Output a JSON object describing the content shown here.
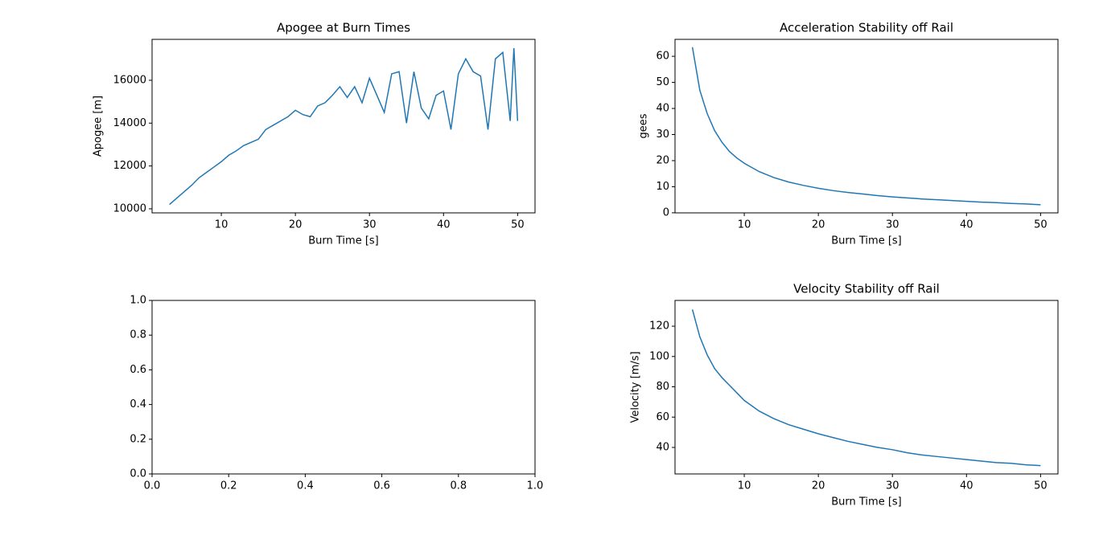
{
  "chart_data": [
    {
      "type": "line",
      "title": "Apogee at Burn Times",
      "xlabel": "Burn Time [s]",
      "ylabel": "Apogee [m]",
      "x": [
        3,
        4,
        5,
        6,
        7,
        8,
        9,
        10,
        11,
        12,
        13,
        14,
        15,
        16,
        17,
        18,
        19,
        20,
        21,
        22,
        23,
        24,
        25,
        26,
        27,
        28,
        29,
        30,
        31,
        32,
        33,
        34,
        35,
        36,
        37,
        38,
        39,
        40,
        41,
        42,
        43,
        44,
        45,
        46,
        47,
        48,
        49,
        49.5,
        50
      ],
      "series": [
        {
          "color": "#1f77b4",
          "values": [
            10200,
            10500,
            10800,
            11100,
            11450,
            11700,
            11950,
            12200,
            12500,
            12700,
            12950,
            13100,
            13250,
            13700,
            13900,
            14100,
            14300,
            14600,
            14400,
            14300,
            14800,
            14950,
            15300,
            15700,
            15200,
            15700,
            14950,
            16100,
            15300,
            14500,
            16300,
            16400,
            14000,
            16400,
            14700,
            14200,
            15300,
            15500,
            13700,
            16300,
            17000,
            16400,
            16200,
            13700,
            17000,
            17300,
            14100,
            17500,
            14100
          ]
        }
      ],
      "xlim": [
        0.65,
        52.35
      ],
      "xticks": [
        10,
        20,
        30,
        40,
        50
      ],
      "ylim": [
        9810,
        17910
      ],
      "yticks": [
        10000,
        12000,
        14000,
        16000
      ]
    },
    {
      "type": "line",
      "title": "Acceleration Stability off Rail",
      "xlabel": "Burn Time [s]",
      "ylabel": "gees",
      "x": [
        3,
        4,
        5,
        6,
        7,
        8,
        9,
        10,
        12,
        14,
        16,
        18,
        20,
        22,
        24,
        26,
        28,
        30,
        32,
        34,
        36,
        38,
        40,
        42,
        44,
        46,
        48,
        50
      ],
      "series": [
        {
          "color": "#1f77b4",
          "values": [
            63.5,
            47,
            38,
            31.5,
            27,
            23.5,
            21,
            19,
            15.8,
            13.5,
            11.8,
            10.5,
            9.4,
            8.5,
            7.8,
            7.2,
            6.6,
            6.1,
            5.7,
            5.3,
            5.0,
            4.7,
            4.4,
            4.1,
            3.9,
            3.6,
            3.4,
            3.1
          ]
        }
      ],
      "xlim": [
        0.65,
        52.35
      ],
      "xticks": [
        10,
        20,
        30,
        40,
        50
      ],
      "ylim": [
        -0.03,
        66.5
      ],
      "yticks": [
        0,
        10,
        20,
        30,
        40,
        50,
        60
      ]
    },
    {
      "type": "line",
      "x": [],
      "series": [],
      "xlim": [
        0,
        1
      ],
      "xticks": [
        {
          "value": 0,
          "label": "0.0"
        },
        0.2,
        0.4,
        0.6,
        0.8,
        {
          "value": 1,
          "label": "1.0"
        }
      ],
      "ylim": [
        0,
        1
      ],
      "yticks": [
        {
          "value": 0,
          "label": "0.0"
        },
        0.2,
        0.4,
        0.6,
        0.8,
        {
          "value": 1,
          "label": "1.0"
        }
      ]
    },
    {
      "type": "line",
      "title": "Velocity Stability off Rail",
      "xlabel": "Burn Time [s]",
      "ylabel": "Velocity [m/s]",
      "x": [
        3,
        4,
        5,
        6,
        7,
        8,
        9,
        10,
        12,
        14,
        16,
        18,
        20,
        22,
        24,
        26,
        28,
        30,
        32,
        34,
        36,
        38,
        40,
        42,
        44,
        46,
        48,
        50
      ],
      "series": [
        {
          "color": "#1f77b4",
          "values": [
            131,
            113,
            101,
            92,
            86,
            81,
            76,
            71,
            64,
            59,
            55,
            52,
            49,
            46.5,
            44,
            42,
            40,
            38.5,
            36.5,
            35,
            34,
            33,
            32,
            31,
            30,
            29.5,
            28.5,
            28
          ]
        }
      ],
      "xlim": [
        0.65,
        52.35
      ],
      "xticks": [
        10,
        20,
        30,
        40,
        50
      ],
      "ylim": [
        22.5,
        137
      ],
      "yticks": [
        40,
        60,
        80,
        100,
        120
      ]
    }
  ]
}
